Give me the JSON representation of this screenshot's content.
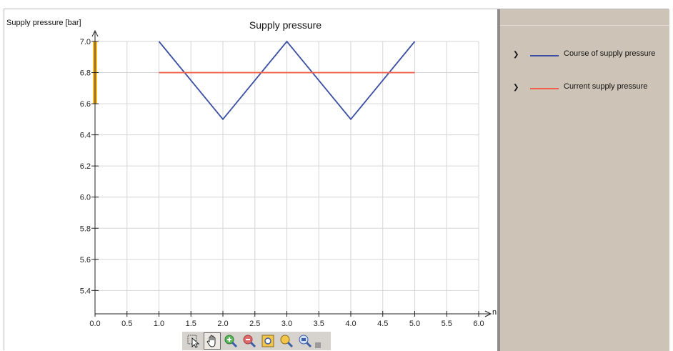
{
  "chart_data": {
    "type": "line",
    "title": "Supply pressure",
    "ylabel": "Supply pressure [bar]",
    "xlabel": "n",
    "xlim": [
      0,
      6
    ],
    "ylim": [
      5.25,
      7.0
    ],
    "xticks": [
      "0.0",
      "0.5",
      "1.0",
      "1.5",
      "2.0",
      "2.5",
      "3.0",
      "3.5",
      "4.0",
      "4.5",
      "5.0",
      "5.5",
      "6.0"
    ],
    "yticks": [
      "5.4",
      "5.6",
      "5.8",
      "6.0",
      "6.2",
      "6.4",
      "6.6",
      "6.8",
      "7.0"
    ],
    "grid": true,
    "legend_position": "right",
    "highlight_band": {
      "y": [
        6.6,
        7.0
      ],
      "color": "#f5b62a"
    },
    "series": [
      {
        "name": "Course of supply pressure",
        "color": "#3a4fa3",
        "x": [
          1.0,
          2.0,
          3.0,
          4.0,
          5.0
        ],
        "y": [
          7.0,
          6.5,
          7.0,
          6.5,
          7.0
        ]
      },
      {
        "name": "Current supply pressure",
        "color": "#f0604a",
        "x": [
          1.0,
          5.0
        ],
        "y": [
          6.8,
          6.8
        ]
      }
    ]
  },
  "toolbar": {
    "buttons": [
      {
        "icon": "select-pointer-icon",
        "active": false
      },
      {
        "icon": "pan-hand-icon",
        "active": true
      },
      {
        "icon": "zoom-in-icon",
        "active": false
      },
      {
        "icon": "zoom-out-icon",
        "active": false
      },
      {
        "icon": "fit-view-icon",
        "active": false
      },
      {
        "icon": "zoom-magnify-icon",
        "active": false
      },
      {
        "icon": "zoom-reset-icon",
        "active": false
      }
    ]
  }
}
